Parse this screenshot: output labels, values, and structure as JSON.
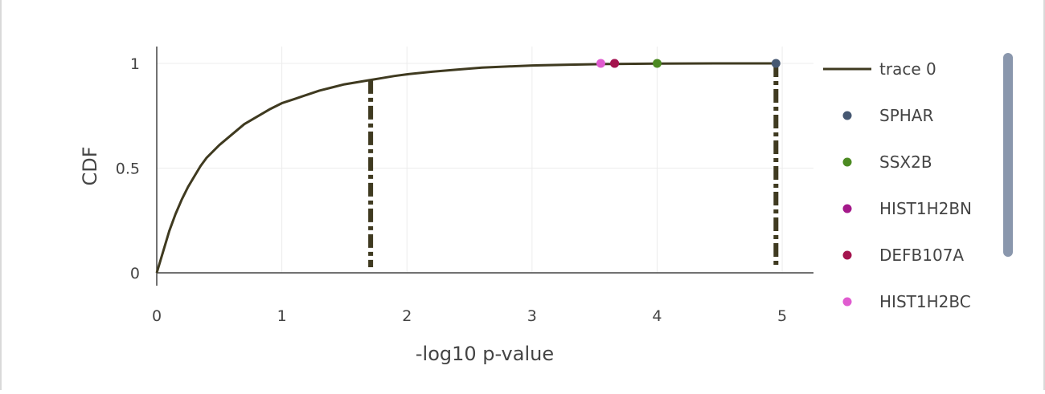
{
  "chart_data": {
    "type": "line",
    "xlabel": "-log10 p-value",
    "ylabel": "CDF",
    "xlim": [
      0,
      5.25
    ],
    "ylim": [
      0,
      1
    ],
    "x_ticks": [
      "0",
      "1",
      "2",
      "3",
      "4",
      "5"
    ],
    "y_ticks": [
      "0",
      "0.5",
      "1"
    ],
    "grid": true,
    "legend_position": "right",
    "line_color": "#3f3a20",
    "cdf_curve": {
      "name": "trace 0",
      "x": [
        0,
        0.05,
        0.1,
        0.15,
        0.2,
        0.25,
        0.3,
        0.35,
        0.4,
        0.5,
        0.6,
        0.7,
        0.8,
        0.9,
        1.0,
        1.1,
        1.2,
        1.3,
        1.4,
        1.5,
        1.6,
        1.7,
        1.8,
        1.9,
        2.0,
        2.2,
        2.4,
        2.6,
        2.8,
        3.0,
        3.3,
        3.6,
        4.0,
        4.5,
        4.95
      ],
      "y": [
        0,
        0.1,
        0.2,
        0.28,
        0.35,
        0.41,
        0.46,
        0.51,
        0.55,
        0.61,
        0.66,
        0.71,
        0.745,
        0.78,
        0.81,
        0.83,
        0.85,
        0.87,
        0.885,
        0.9,
        0.91,
        0.92,
        0.93,
        0.94,
        0.948,
        0.96,
        0.97,
        0.98,
        0.985,
        0.99,
        0.994,
        0.997,
        0.999,
        1.0,
        1.0
      ]
    },
    "vertical_lines": [
      {
        "x": 1.71,
        "y_top": 0.92
      },
      {
        "x": 4.95,
        "y_top": 1.0
      }
    ],
    "points": [
      {
        "name": "SPHAR",
        "x": 4.95,
        "y": 1.0,
        "color": "#465872"
      },
      {
        "name": "SSX2B",
        "x": 4.0,
        "y": 1.0,
        "color": "#4c8a22"
      },
      {
        "name": "HIST1H2BN",
        "x": 3.66,
        "y": 1.0,
        "color": "#a4198a"
      },
      {
        "name": "DEFB107A",
        "x": 3.66,
        "y": 1.0,
        "color": "#a4144e"
      },
      {
        "name": "HIST1H2BC",
        "x": 3.55,
        "y": 1.0,
        "color": "#e05cd0"
      }
    ]
  }
}
